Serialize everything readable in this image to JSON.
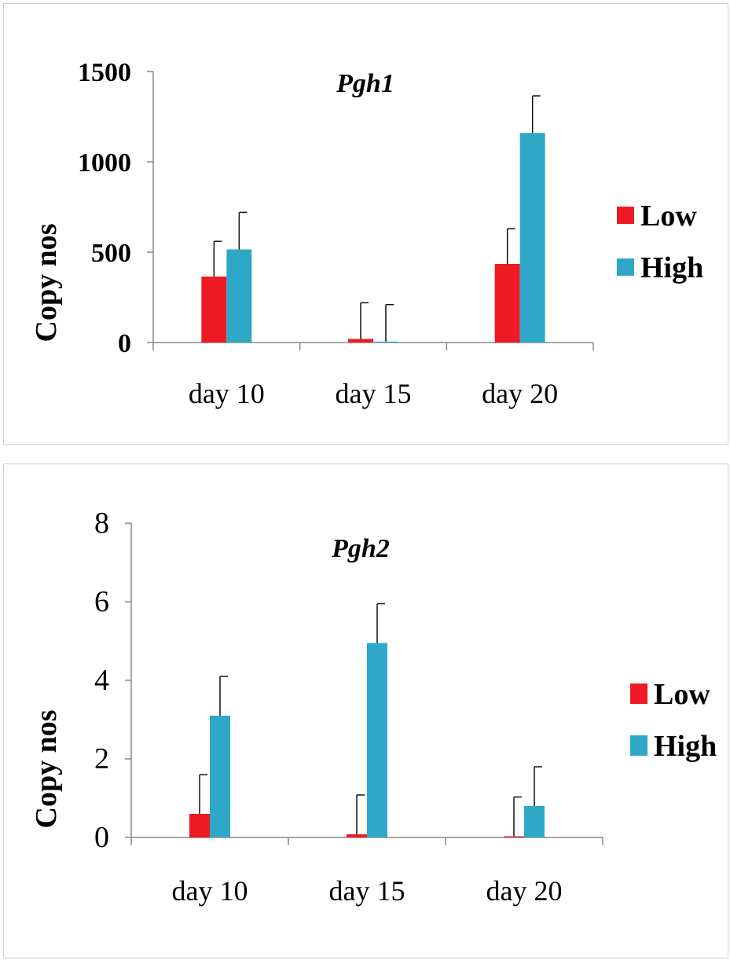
{
  "colors": {
    "low": "#ee1b24",
    "high": "#2fa8c8",
    "axis": "#888888"
  },
  "chart_data": [
    {
      "type": "bar",
      "title": "Pgh1",
      "ylabel": "Copy nos",
      "xlabel": "",
      "categories": [
        "day 10",
        "day 15",
        "day 20"
      ],
      "ylim": [
        0,
        1500
      ],
      "yticks": [
        "0",
        "500",
        "1000",
        "1500"
      ],
      "legend": {
        "placement": "right"
      },
      "series": [
        {
          "name": "Low",
          "values": [
            365,
            20,
            435
          ],
          "errors": [
            195,
            200,
            195
          ]
        },
        {
          "name": "High",
          "values": [
            515,
            5,
            1160
          ],
          "errors": [
            205,
            205,
            205
          ]
        }
      ]
    },
    {
      "type": "bar",
      "title": "Pgh2",
      "ylabel": "Copy nos",
      "xlabel": "",
      "categories": [
        "day 10",
        "day 15",
        "day 20"
      ],
      "ylim": [
        0,
        8
      ],
      "yticks": [
        "0",
        "2",
        "4",
        "6",
        "8"
      ],
      "legend": {
        "placement": "right"
      },
      "series": [
        {
          "name": "Low",
          "values": [
            0.6,
            0.08,
            0.03
          ],
          "errors": [
            1.0,
            1.0,
            1.0
          ]
        },
        {
          "name": "High",
          "values": [
            3.1,
            4.95,
            0.8
          ],
          "errors": [
            1.0,
            1.0,
            1.0
          ]
        }
      ]
    }
  ]
}
